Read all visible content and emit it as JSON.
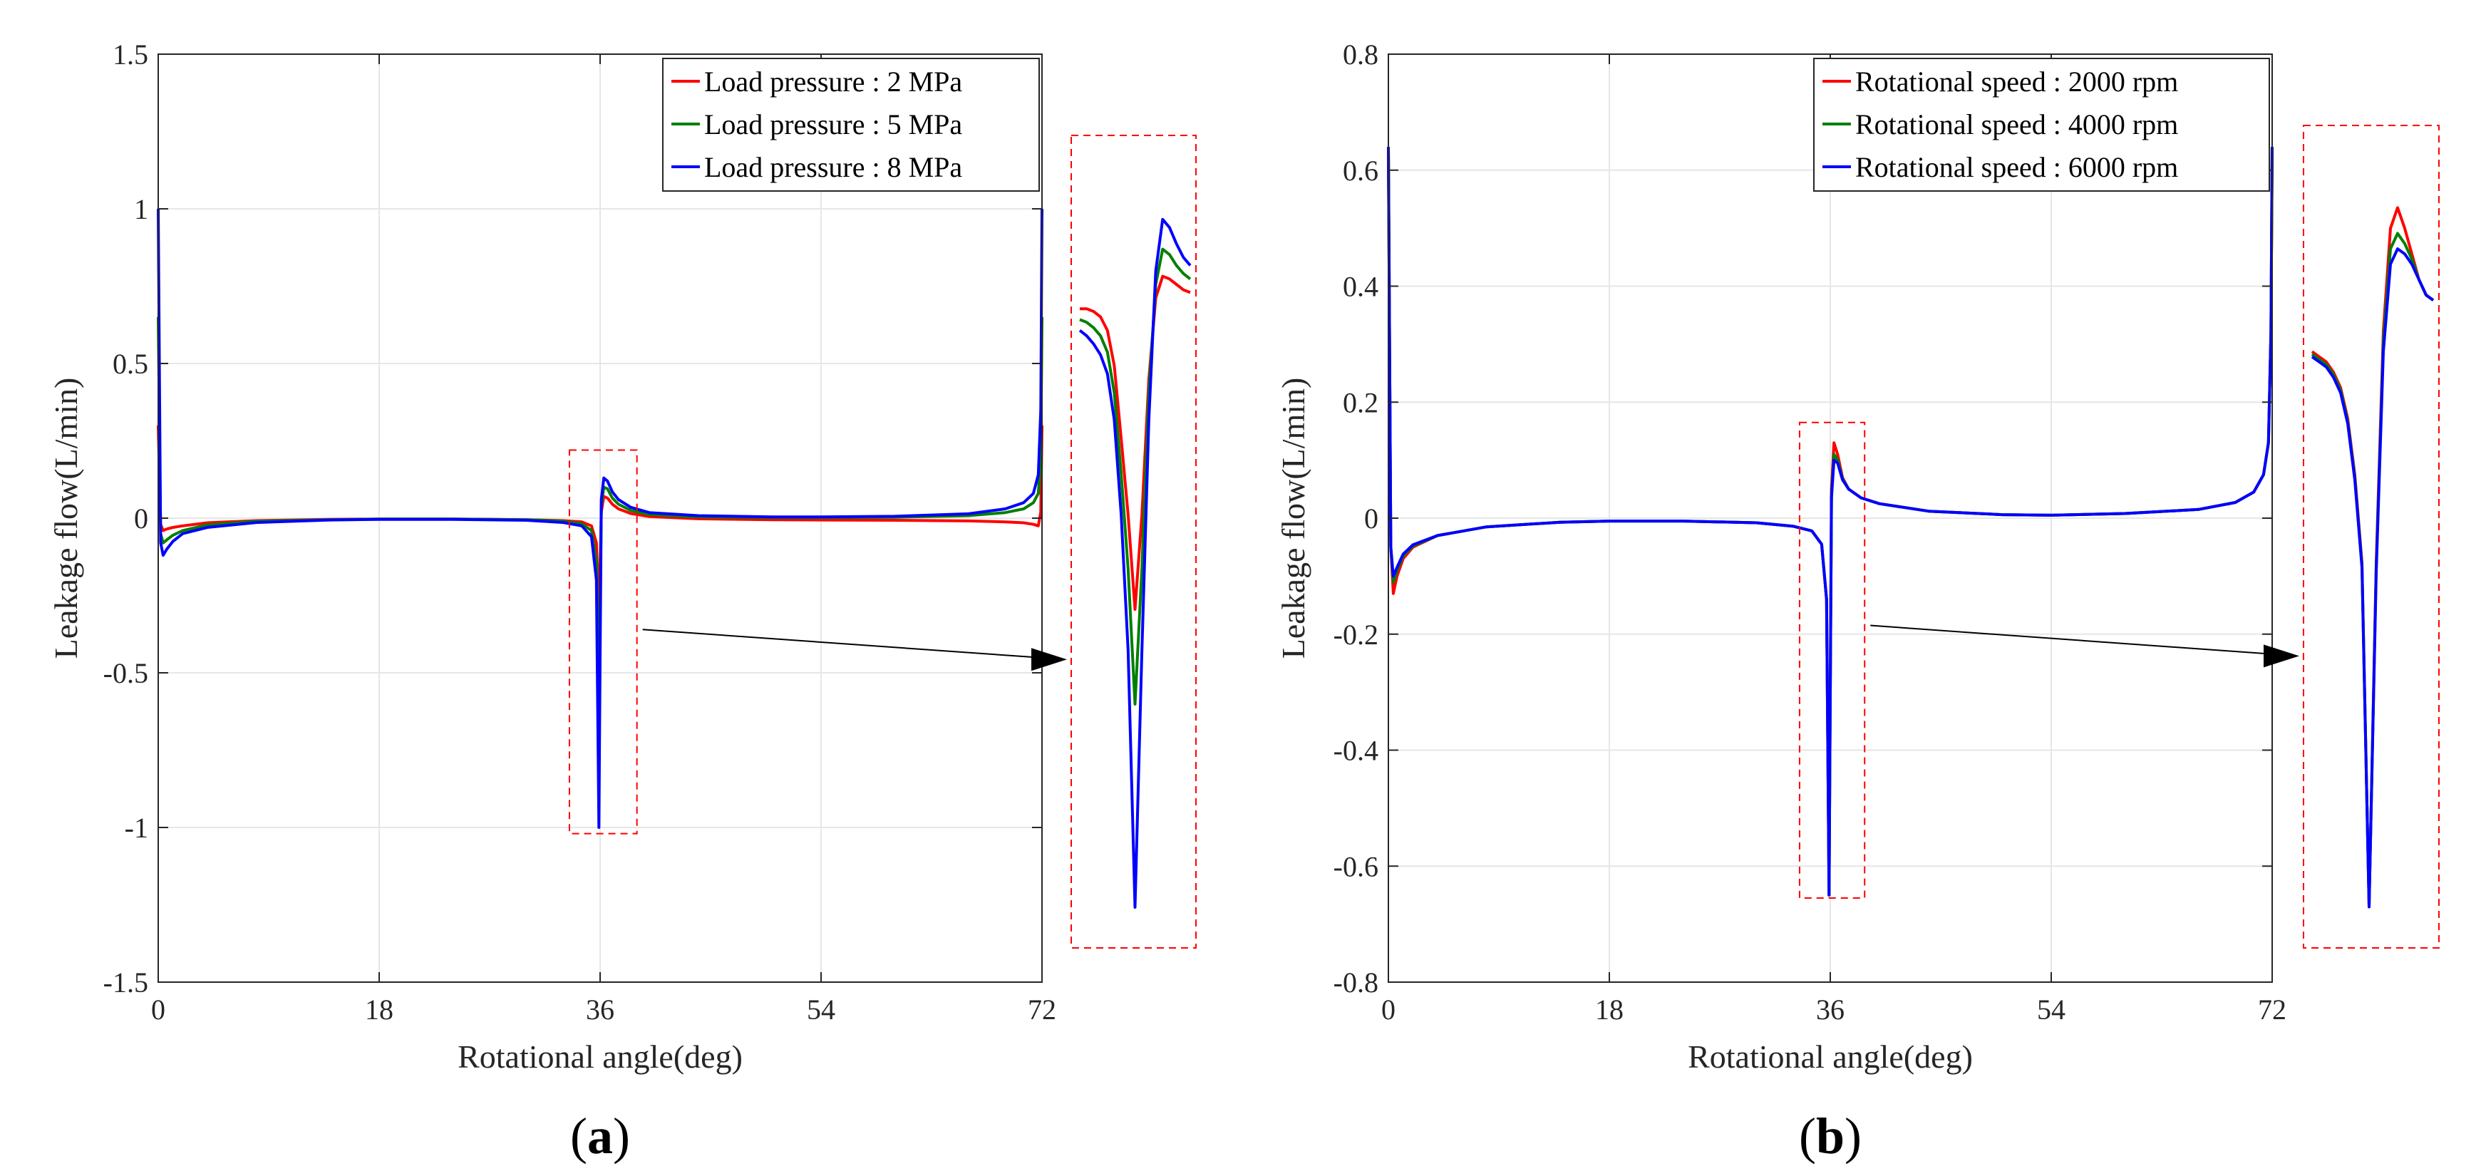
{
  "colors": {
    "red": "#ff0000",
    "green": "#008000",
    "blue": "#0000ff",
    "zoom_box": "#ff0000",
    "axis": "#262626",
    "grid": "#e6e6e6"
  },
  "chart_data": [
    {
      "panel_label": "(a)",
      "panel_letter": "a",
      "type": "line",
      "xlabel": "Rotational angle(deg)",
      "ylabel": "Leakage flow(L/min)",
      "xlim": [
        0,
        72
      ],
      "ylim": [
        -1.5,
        1.5
      ],
      "xticks": [
        0,
        18,
        36,
        54,
        72
      ],
      "yticks": [
        -1.5,
        -1,
        -0.5,
        0,
        0.5,
        1,
        1.5
      ],
      "ytick_labels": [
        "-1.5",
        "-1",
        "-0.5",
        "0",
        "0.5",
        "1",
        "1.5"
      ],
      "grid": true,
      "legend_position": "top-right",
      "series": [
        {
          "name": "Load pressure : 2 MPa",
          "color": "#ff0000",
          "x": [
            0,
            0.2,
            0.4,
            0.7,
            1.2,
            2,
            4,
            8,
            14,
            18,
            24,
            30,
            33,
            34.5,
            35.3,
            35.7,
            35.9,
            36,
            36.1,
            36.3,
            36.6,
            37,
            37.5,
            38.5,
            40,
            44,
            50,
            54,
            60,
            66,
            69,
            70.5,
            71.3,
            71.7,
            71.9,
            72
          ],
          "y": [
            0.3,
            -0.02,
            -0.04,
            -0.035,
            -0.03,
            -0.025,
            -0.015,
            -0.008,
            -0.004,
            -0.003,
            -0.003,
            -0.005,
            -0.008,
            -0.012,
            -0.025,
            -0.08,
            -0.3,
            -0.15,
            0.02,
            0.07,
            0.065,
            0.045,
            0.03,
            0.015,
            0.005,
            -0.002,
            -0.005,
            -0.006,
            -0.007,
            -0.009,
            -0.012,
            -0.015,
            -0.02,
            -0.025,
            0.02,
            0.3
          ]
        },
        {
          "name": "Load pressure : 5 MPa",
          "color": "#008000",
          "x": [
            0,
            0.2,
            0.4,
            0.7,
            1.2,
            2,
            4,
            8,
            14,
            18,
            24,
            30,
            33,
            34.5,
            35.3,
            35.7,
            35.9,
            36,
            36.1,
            36.3,
            36.6,
            37,
            37.5,
            38.5,
            40,
            44,
            50,
            54,
            60,
            66,
            69,
            70.5,
            71.3,
            71.7,
            71.9,
            72
          ],
          "y": [
            0.65,
            -0.05,
            -0.08,
            -0.07,
            -0.055,
            -0.04,
            -0.022,
            -0.01,
            -0.005,
            -0.003,
            -0.003,
            -0.005,
            -0.01,
            -0.018,
            -0.04,
            -0.14,
            -0.65,
            -0.3,
            0.04,
            0.1,
            0.095,
            0.065,
            0.045,
            0.025,
            0.012,
            0.004,
            0.002,
            0.002,
            0.003,
            0.008,
            0.018,
            0.03,
            0.05,
            0.08,
            0.2,
            0.65
          ]
        },
        {
          "name": "Load pressure : 8 MPa",
          "color": "#0000ff",
          "x": [
            0,
            0.2,
            0.4,
            0.7,
            1.2,
            2,
            4,
            8,
            14,
            18,
            24,
            30,
            33,
            34.5,
            35.3,
            35.7,
            35.9,
            36,
            36.1,
            36.3,
            36.6,
            37,
            37.5,
            38.5,
            40,
            44,
            50,
            54,
            60,
            66,
            69,
            70.5,
            71.3,
            71.7,
            71.9,
            72
          ],
          "y": [
            1.0,
            -0.08,
            -0.12,
            -0.1,
            -0.075,
            -0.05,
            -0.03,
            -0.014,
            -0.006,
            -0.004,
            -0.004,
            -0.007,
            -0.014,
            -0.025,
            -0.06,
            -0.2,
            -1.0,
            -0.45,
            0.06,
            0.13,
            0.12,
            0.085,
            0.06,
            0.035,
            0.018,
            0.008,
            0.004,
            0.004,
            0.006,
            0.014,
            0.03,
            0.05,
            0.08,
            0.14,
            0.35,
            1.0
          ]
        }
      ],
      "annotations": [
        {
          "type": "zoom-box",
          "x_range": [
            33.5,
            39
          ],
          "y_range": [
            -1.02,
            0.22
          ]
        },
        {
          "type": "zoom-arrow",
          "from_data": [
            39,
            -0.36
          ]
        }
      ],
      "inset": {
        "description": "magnified view of the dip near 36 deg",
        "series": [
          {
            "color": "#ff0000",
            "y": [
              0.86,
              0.86,
              0.85,
              0.83,
              0.78,
              0.65,
              0.38,
              0.1,
              -0.25,
              0.1,
              0.6,
              0.9,
              0.98,
              0.97,
              0.95,
              0.93,
              0.92
            ]
          },
          {
            "color": "#008000",
            "y": [
              0.82,
              0.81,
              0.79,
              0.76,
              0.7,
              0.55,
              0.25,
              -0.1,
              -0.6,
              -0.1,
              0.55,
              0.95,
              1.08,
              1.06,
              1.02,
              0.99,
              0.97
            ]
          },
          {
            "color": "#0000ff",
            "y": [
              0.78,
              0.76,
              0.73,
              0.69,
              0.62,
              0.45,
              0.1,
              -0.4,
              -1.35,
              -0.4,
              0.45,
              1.0,
              1.19,
              1.16,
              1.1,
              1.05,
              1.02
            ]
          }
        ],
        "ylim": [
          -1.5,
          1.5
        ]
      }
    },
    {
      "panel_label": "(b)",
      "panel_letter": "b",
      "type": "line",
      "xlabel": "Rotational angle(deg)",
      "ylabel": "Leakage flow(L/min)",
      "xlim": [
        0,
        72
      ],
      "ylim": [
        -0.8,
        0.8
      ],
      "xticks": [
        0,
        18,
        36,
        54,
        72
      ],
      "yticks": [
        -0.8,
        -0.6,
        -0.4,
        -0.2,
        0,
        0.2,
        0.4,
        0.6,
        0.8
      ],
      "ytick_labels": [
        "-0.8",
        "-0.6",
        "-0.4",
        "-0.2",
        "0",
        "0.2",
        "0.4",
        "0.6",
        "0.8"
      ],
      "grid": true,
      "legend_position": "top-right",
      "series": [
        {
          "name": "Rotational speed : 2000 rpm",
          "color": "#ff0000",
          "x": [
            0,
            0.2,
            0.4,
            0.7,
            1.2,
            2,
            4,
            8,
            14,
            18,
            24,
            30,
            33,
            34.5,
            35.3,
            35.7,
            35.9,
            36,
            36.1,
            36.3,
            36.6,
            37,
            37.5,
            38.5,
            40,
            44,
            50,
            54,
            60,
            66,
            69,
            70.5,
            71.3,
            71.7,
            71.9,
            72
          ],
          "y": [
            0.64,
            -0.05,
            -0.13,
            -0.1,
            -0.07,
            -0.05,
            -0.03,
            -0.015,
            -0.007,
            -0.005,
            -0.005,
            -0.008,
            -0.014,
            -0.022,
            -0.045,
            -0.14,
            -0.65,
            -0.3,
            0.05,
            0.13,
            0.11,
            0.07,
            0.05,
            0.035,
            0.025,
            0.012,
            0.006,
            0.005,
            0.008,
            0.015,
            0.027,
            0.045,
            0.075,
            0.13,
            0.32,
            0.64
          ]
        },
        {
          "name": "Rotational speed : 4000 rpm",
          "color": "#008000",
          "x": [
            0,
            0.2,
            0.4,
            0.7,
            1.2,
            2,
            4,
            8,
            14,
            18,
            24,
            30,
            33,
            34.5,
            35.3,
            35.7,
            35.9,
            36,
            36.1,
            36.3,
            36.6,
            37,
            37.5,
            38.5,
            40,
            44,
            50,
            54,
            60,
            66,
            69,
            70.5,
            71.3,
            71.7,
            71.9,
            72
          ],
          "y": [
            0.64,
            -0.05,
            -0.11,
            -0.09,
            -0.065,
            -0.048,
            -0.03,
            -0.015,
            -0.007,
            -0.005,
            -0.005,
            -0.008,
            -0.014,
            -0.022,
            -0.045,
            -0.14,
            -0.65,
            -0.3,
            0.04,
            0.11,
            0.1,
            0.068,
            0.05,
            0.035,
            0.025,
            0.012,
            0.006,
            0.005,
            0.008,
            0.015,
            0.027,
            0.045,
            0.075,
            0.13,
            0.32,
            0.64
          ]
        },
        {
          "name": "Rotational speed : 6000 rpm",
          "color": "#0000ff",
          "x": [
            0,
            0.2,
            0.4,
            0.7,
            1.2,
            2,
            4,
            8,
            14,
            18,
            24,
            30,
            33,
            34.5,
            35.3,
            35.7,
            35.9,
            36,
            36.1,
            36.3,
            36.6,
            37,
            37.5,
            38.5,
            40,
            44,
            50,
            54,
            60,
            66,
            69,
            70.5,
            71.3,
            71.7,
            71.9,
            72
          ],
          "y": [
            0.64,
            -0.05,
            -0.1,
            -0.085,
            -0.062,
            -0.046,
            -0.03,
            -0.015,
            -0.007,
            -0.005,
            -0.005,
            -0.008,
            -0.014,
            -0.022,
            -0.045,
            -0.14,
            -0.65,
            -0.3,
            0.035,
            0.1,
            0.095,
            0.066,
            0.05,
            0.035,
            0.025,
            0.012,
            0.006,
            0.005,
            0.008,
            0.015,
            0.027,
            0.045,
            0.075,
            0.13,
            0.32,
            0.64
          ]
        }
      ],
      "annotations": [
        {
          "type": "zoom-box",
          "x_range": [
            33.5,
            38.8
          ],
          "y_range": [
            -0.655,
            0.165
          ]
        },
        {
          "type": "zoom-arrow",
          "from_data": [
            38.8,
            -0.185
          ]
        }
      ],
      "inset": {
        "description": "magnified view of the dip near 36 deg",
        "series": [
          {
            "color": "#ff0000",
            "y": [
              0.36,
              0.35,
              0.34,
              0.32,
              0.29,
              0.23,
              0.12,
              -0.05,
              -0.72,
              -0.05,
              0.4,
              0.6,
              0.64,
              0.6,
              0.55,
              0.5,
              0.47,
              0.46
            ]
          },
          {
            "color": "#008000",
            "y": [
              0.355,
              0.345,
              0.335,
              0.315,
              0.285,
              0.225,
              0.115,
              -0.055,
              -0.72,
              -0.06,
              0.38,
              0.56,
              0.59,
              0.57,
              0.54,
              0.5,
              0.47,
              0.46
            ]
          },
          {
            "color": "#0000ff",
            "y": [
              0.35,
              0.34,
              0.33,
              0.31,
              0.28,
              0.22,
              0.11,
              -0.06,
              -0.72,
              -0.07,
              0.36,
              0.53,
              0.56,
              0.55,
              0.53,
              0.5,
              0.47,
              0.46
            ]
          }
        ],
        "ylim": [
          -0.8,
          0.8
        ]
      }
    }
  ]
}
